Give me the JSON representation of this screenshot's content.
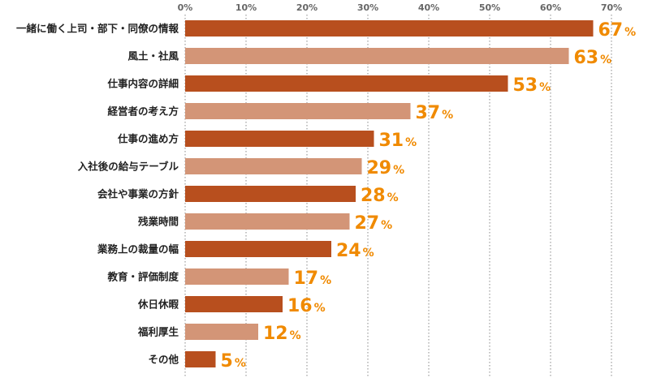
{
  "chart_data": {
    "type": "bar",
    "orientation": "horizontal",
    "categories": [
      "一緒に働く上司・部下・同僚の情報",
      "風土・社風",
      "仕事内容の詳細",
      "経営者の考え方",
      "仕事の進め方",
      "入社後の給与テーブル",
      "会社や事業の方針",
      "残業時間",
      "業務上の裁量の幅",
      "教育・評価制度",
      "休日休暇",
      "福利厚生",
      "その他"
    ],
    "values": [
      67,
      63,
      53,
      37,
      31,
      29,
      28,
      27,
      24,
      17,
      16,
      12,
      5
    ],
    "value_suffix": "%",
    "xlim": [
      0,
      70
    ],
    "xticks": [
      "0%",
      "10%",
      "20%",
      "30%",
      "40%",
      "50%",
      "60%",
      "70%"
    ],
    "grid": true,
    "colors": {
      "dark": "#b84f1e",
      "light": "#d39577",
      "label": "#f08a00"
    }
  }
}
